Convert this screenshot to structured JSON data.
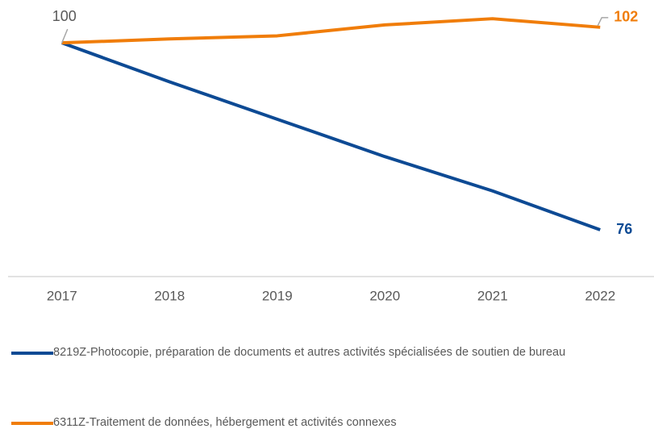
{
  "chart_data": {
    "type": "line",
    "categories": [
      "2017",
      "2018",
      "2019",
      "2020",
      "2021",
      "2022"
    ],
    "series": [
      {
        "name": "8219Z-Photocopie, préparation de documents et autres activités spécialisées de soutien de bureau",
        "color": "#0d4a94",
        "values": [
          100,
          95.0,
          90.2,
          85.4,
          81.0,
          76
        ]
      },
      {
        "name": "6311Z-Traitement de données, hébergement et activités connexes",
        "color": "#f07d0a",
        "values": [
          100,
          100.5,
          100.9,
          102.3,
          103.1,
          102
        ]
      }
    ],
    "ylim": [
      70,
      105.5
    ]
  }
}
